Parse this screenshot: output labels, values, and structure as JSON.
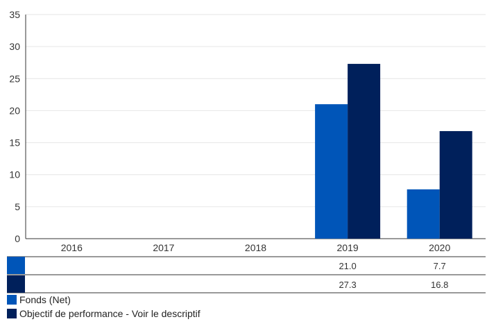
{
  "chart_data": {
    "type": "bar",
    "categories": [
      "2016",
      "2017",
      "2018",
      "2019",
      "2020"
    ],
    "series": [
      {
        "name": "Fonds (Net)",
        "color": "#0055b8",
        "values": [
          null,
          null,
          null,
          21.0,
          7.7
        ],
        "labels": [
          "",
          "",
          "",
          "21.0",
          "7.7"
        ]
      },
      {
        "name": "Objectif de performance - Voir le descriptif",
        "color": "#00205b",
        "values": [
          null,
          null,
          null,
          27.3,
          16.8
        ],
        "labels": [
          "",
          "",
          "",
          "27.3",
          "16.8"
        ]
      }
    ],
    "ylim": [
      0,
      35
    ],
    "yticks": [
      "0",
      "5",
      "10",
      "15",
      "20",
      "25",
      "30",
      "35"
    ],
    "grid": true,
    "legend_position": "bottom-left",
    "data_table": true
  }
}
